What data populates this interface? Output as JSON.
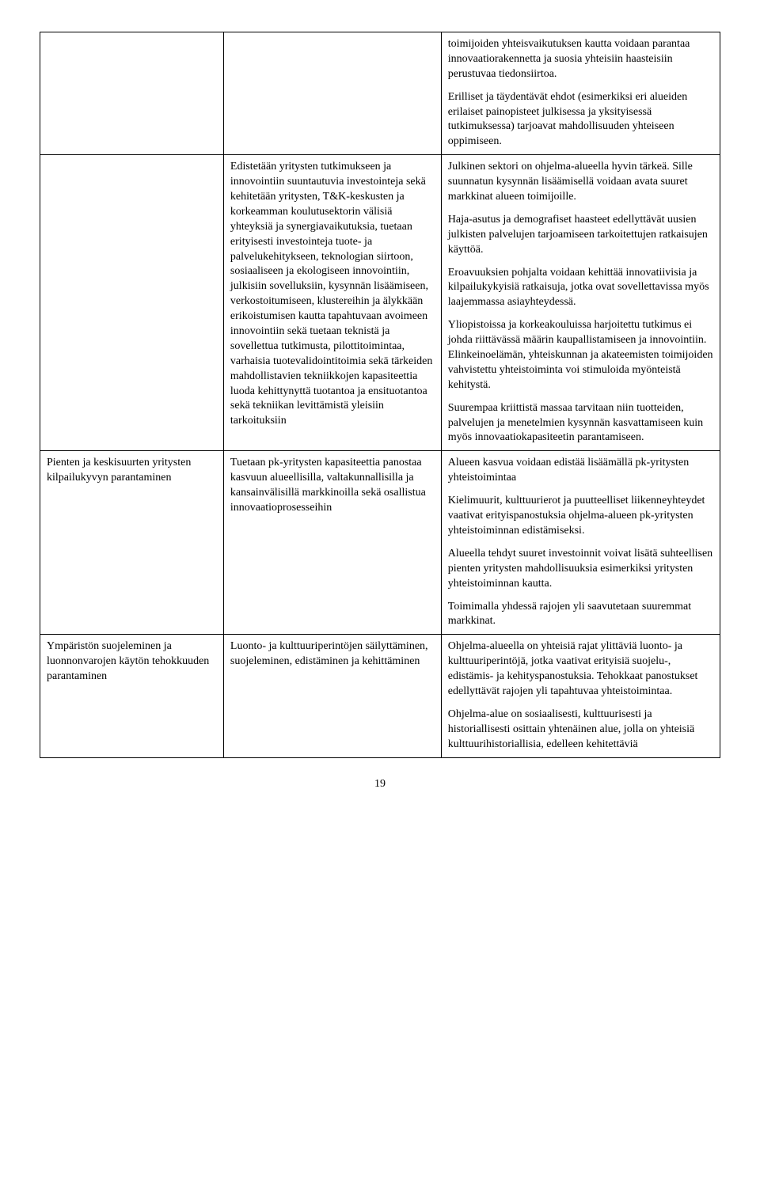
{
  "rows": [
    {
      "col1": [],
      "col2": [],
      "col3": [
        "toimijoiden yhteisvaikutuksen kautta voidaan parantaa innovaatiorakennetta ja suosia yhteisiin haasteisiin perustuvaa tiedonsiirtoa.",
        "Erilliset ja täydentävät ehdot (esimerkiksi eri alueiden erilaiset painopisteet julkisessa ja yksityisessä tutkimuksessa) tarjoavat mahdollisuuden yhteiseen oppimiseen."
      ]
    },
    {
      "col1": [],
      "col2": [
        "Edistetään yritysten tutkimukseen ja innovointiin suuntautuvia investointeja sekä kehitetään yritysten, T&K-keskusten ja korkeamman koulutusektorin välisiä yhteyksiä ja synergiavaikutuksia, tuetaan erityisesti investointeja tuote- ja palvelukehitykseen, teknologian siirtoon, sosiaaliseen ja ekologiseen innovointiin, julkisiin sovelluksiin, kysynnän lisäämiseen, verkostoitumiseen, klustereihin ja älykkään erikoistumisen kautta tapahtuvaan avoimeen innovointiin sekä tuetaan teknistä ja sovellettua tutkimusta, pilottitoimintaa, varhaisia tuotevalidointitoimia sekä tärkeiden mahdollistavien tekniikkojen kapasiteettia luoda kehittynyttä tuotantoa ja ensituotantoa sekä tekniikan levittämistä yleisiin tarkoituksiin"
      ],
      "col3": [
        "Julkinen sektori on ohjelma-alueella hyvin tärkeä. Sille suunnatun kysynnän lisäämisellä voidaan avata suuret markkinat alueen toimijoille.",
        "Haja-asutus ja demografiset haasteet edellyttävät uusien julkisten palvelujen tarjoamiseen tarkoitettujen ratkaisujen käyttöä.",
        "Eroavuuksien pohjalta voidaan kehittää innovatiivisia ja kilpailukykyisiä ratkaisuja, jotka ovat sovellettavissa myös laajemmassa asiayhteydessä.",
        "Yliopistoissa ja korkeakouluissa harjoitettu tutkimus ei johda riittävässä määrin kaupallistamiseen ja innovointiin. Elinkeinoelämän, yhteiskunnan ja akateemisten toimijoiden vahvistettu yhteistoiminta voi stimuloida myönteistä kehitystä.",
        "Suurempaa kriittistä massaa tarvitaan niin tuotteiden, palvelujen ja menetelmien kysynnän kasvattamiseen kuin myös innovaatiokapasiteetin parantamiseen."
      ]
    },
    {
      "col1": [
        "Pienten ja keskisuurten yritysten kilpailukyvyn parantaminen"
      ],
      "col2": [
        "Tuetaan pk-yritysten kapasiteettia panostaa kasvuun alueellisilla, valtakunnallisilla ja kansainvälisillä markkinoilla sekä osallistua innovaatioprosesseihin"
      ],
      "col3": [
        "Alueen kasvua voidaan edistää lisäämällä pk-yritysten yhteistoimintaa",
        "Kielimuurit, kulttuurierot ja puutteelliset liikenneyhteydet vaativat erityispanostuksia ohjelma-alueen pk-yritysten yhteistoiminnan edistämiseksi.",
        "Alueella tehdyt suuret investoinnit voivat lisätä suhteellisen pienten yritysten mahdollisuuksia esimerkiksi yritysten yhteistoiminnan kautta.",
        "Toimimalla yhdessä rajojen yli saavutetaan suuremmat markkinat."
      ]
    },
    {
      "col1": [
        "Ympäristön suojeleminen ja luonnonvarojen käytön tehokkuuden parantaminen"
      ],
      "col2": [
        "Luonto- ja kulttuuriperintöjen säilyttäminen, suojeleminen, edistäminen ja kehittäminen"
      ],
      "col3": [
        "Ohjelma-alueella on yhteisiä rajat ylittäviä luonto- ja kulttuuriperintöjä, jotka vaativat erityisiä suojelu-, edistämis- ja kehityspanostuksia. Tehokkaat panostukset edellyttävät rajojen yli tapahtuvaa yhteistoimintaa.",
        "Ohjelma-alue on sosiaalisesti, kulttuurisesti ja historiallisesti osittain yhtenäinen alue, jolla on yhteisiä kulttuurihistoriallisia, edelleen kehitettäviä"
      ]
    }
  ],
  "page_number": "19"
}
